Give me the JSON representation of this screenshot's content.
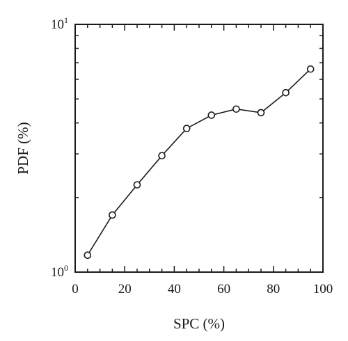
{
  "chart_data": {
    "type": "line",
    "xlabel": "SPC (%)",
    "ylabel": "PDF (%)",
    "xlim": [
      0,
      100
    ],
    "ylim": [
      1,
      10
    ],
    "yscale": "log",
    "xticks": [
      "0",
      "20",
      "40",
      "60",
      "80",
      "100"
    ],
    "yticks": [
      {
        "base": "10",
        "exp": "0"
      },
      {
        "base": "10",
        "exp": "1"
      }
    ],
    "grid": false,
    "marker": "open-circle",
    "series": [
      {
        "x": [
          5,
          15,
          25,
          35,
          45,
          55,
          65,
          75,
          85,
          95
        ],
        "y": [
          1.17,
          1.7,
          2.25,
          2.95,
          3.8,
          4.3,
          4.55,
          4.4,
          5.3,
          6.6
        ]
      }
    ]
  }
}
